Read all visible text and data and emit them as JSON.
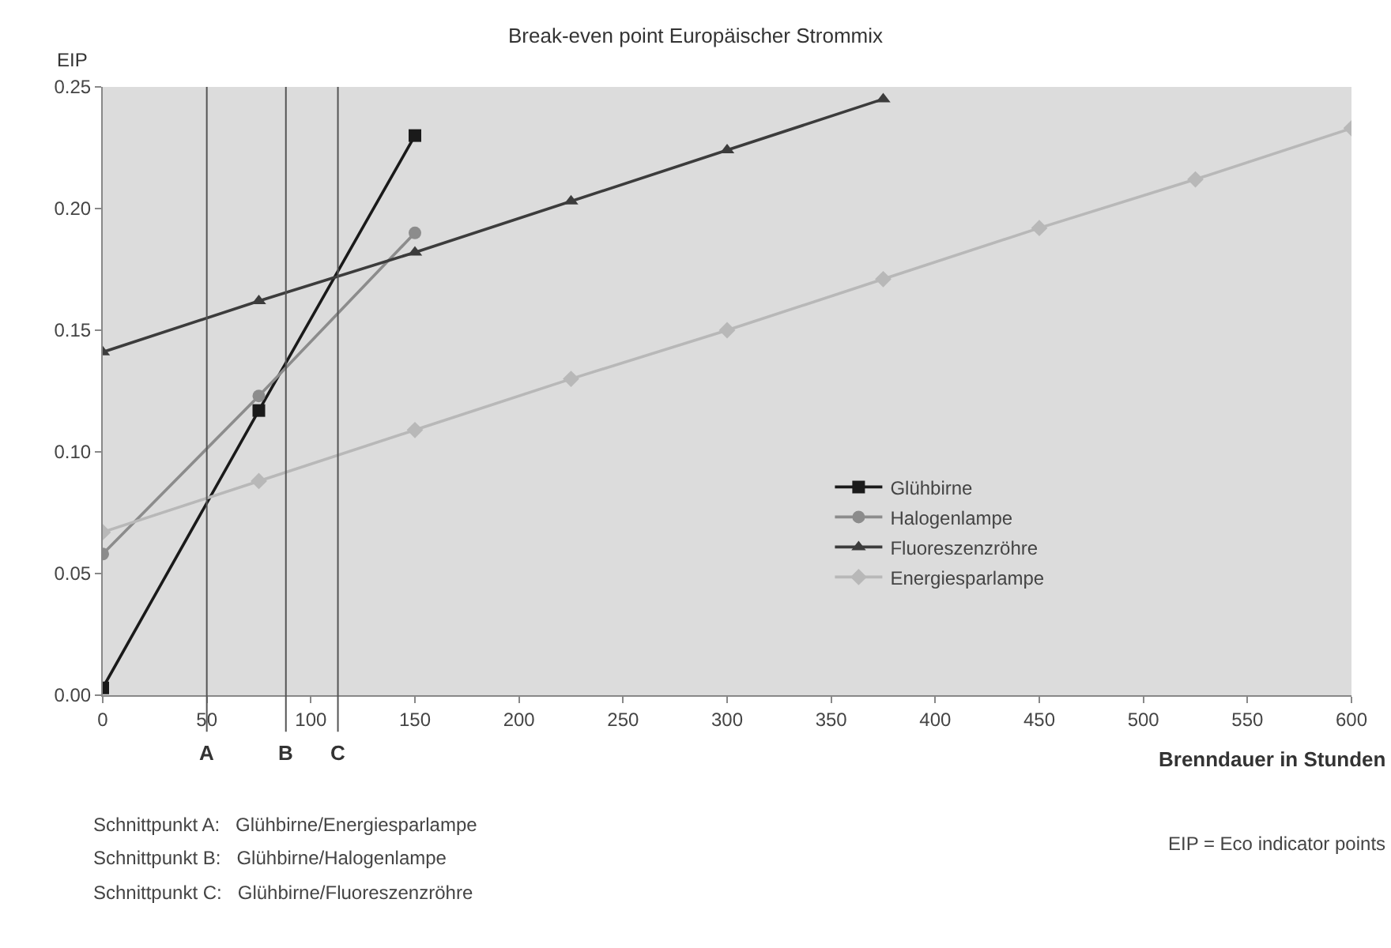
{
  "chart_data": {
    "type": "line",
    "title": "Break-even point Europäischer Strommix",
    "ylabel": "EIP",
    "xlabel": "Brenndauer in Stunden",
    "xlim": [
      0,
      600
    ],
    "xticks": [
      0,
      50,
      100,
      150,
      200,
      250,
      300,
      350,
      400,
      450,
      500,
      550,
      600
    ],
    "ylim": [
      0,
      0.25
    ],
    "yticks": [
      {
        "value": 0,
        "label": "0.00"
      },
      0.05,
      {
        "value": 0.1,
        "label": "0.10"
      },
      0.15,
      {
        "value": 0.2,
        "label": "0.20"
      },
      0.25
    ],
    "series": [
      {
        "name": "Glühbirne",
        "color": "#1a1a1a",
        "marker": "square",
        "x": [
          0,
          75,
          150
        ],
        "values": [
          0.003,
          0.117,
          0.23
        ]
      },
      {
        "name": "Halogenlampe",
        "color": "#8c8c8c",
        "marker": "circle",
        "x": [
          0,
          75,
          150
        ],
        "values": [
          0.058,
          0.123,
          0.19
        ]
      },
      {
        "name": "Fluoreszenzröhre",
        "color": "#3c3c3c",
        "marker": "triangle",
        "x": [
          0,
          75,
          150,
          225,
          300,
          375
        ],
        "values": [
          0.141,
          0.162,
          0.182,
          0.203,
          0.224,
          0.245
        ]
      },
      {
        "name": "Energiesparlampe",
        "color": "#b8b8b8",
        "marker": "diamond",
        "x": [
          0,
          75,
          150,
          225,
          300,
          375,
          450,
          525,
          600
        ],
        "values": [
          0.067,
          0.088,
          0.109,
          0.13,
          0.15,
          0.171,
          0.192,
          0.212,
          0.233
        ]
      }
    ],
    "ref_lines": [
      {
        "axis": "x",
        "value": 50,
        "label": "A",
        "color": "#555555"
      },
      {
        "axis": "x",
        "value": 88,
        "label": "B",
        "color": "#555555"
      },
      {
        "axis": "x",
        "value": 113,
        "label": "C",
        "color": "#555555"
      }
    ],
    "annotations": [
      "Schnittpunkt A:   Glühbirne/Energiesparlampe",
      "Schnittpunkt B:   Glühbirne/Halogenlampe",
      "Schnittpunkt C:   Glühbirne/Fluoreszenzröhre",
      "EIP = Eco indicator points"
    ],
    "grid": false,
    "legend": "bottom right",
    "line_style": "solid"
  }
}
